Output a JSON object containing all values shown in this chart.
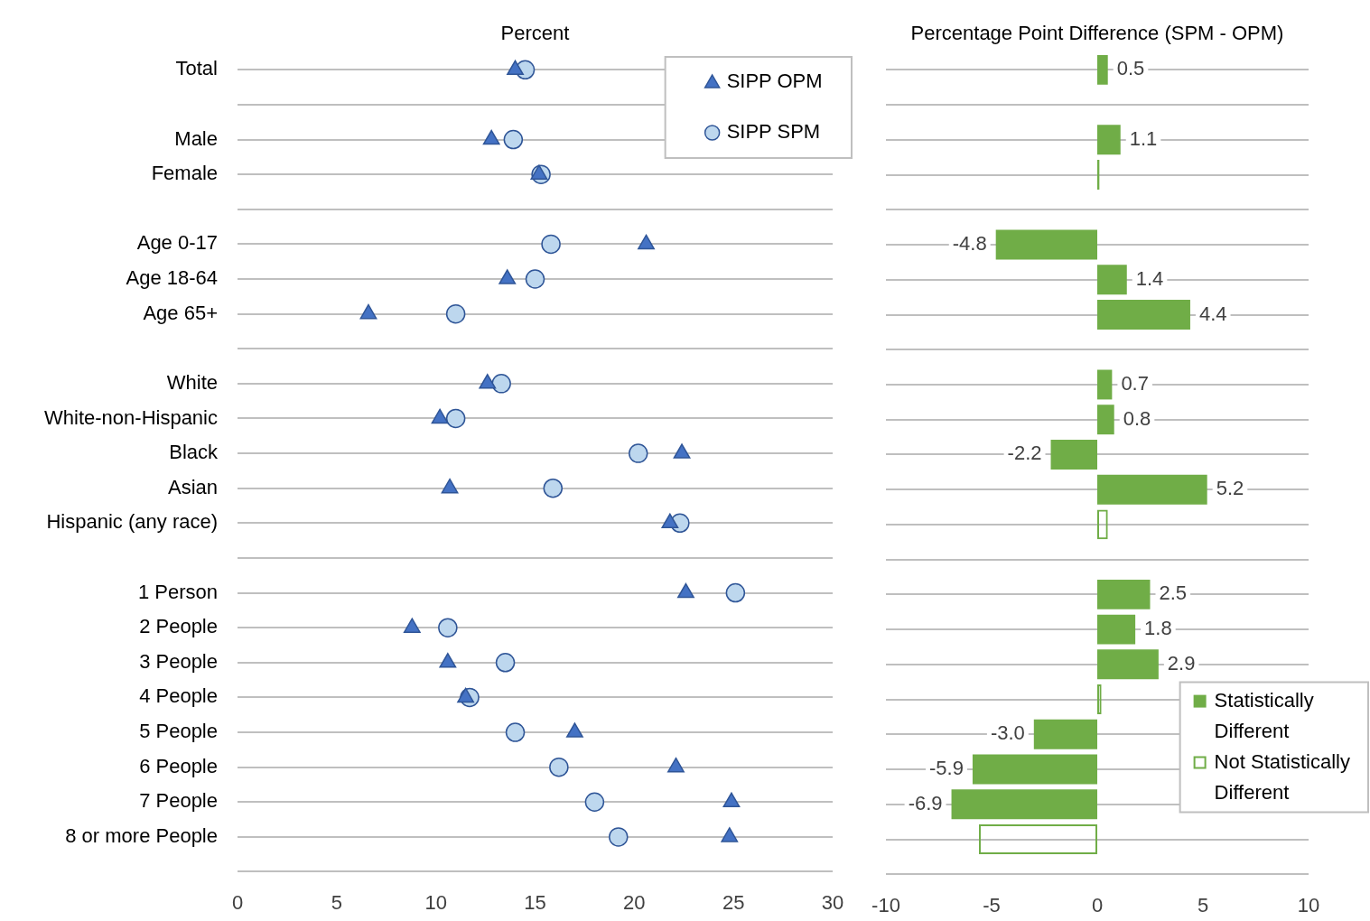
{
  "chart_data": [
    {
      "type": "scatter",
      "orientation": "horizontal",
      "xlabel": "Percent",
      "categories": [
        "Total",
        null,
        "Male",
        "Female",
        null,
        "Age 0-17",
        "Age 18-64",
        "Age 65+",
        null,
        "White",
        "White-non-Hispanic",
        "Black",
        "Asian",
        "Hispanic (any race)",
        null,
        "1 Person",
        "2 People",
        "3 People",
        "4 People",
        "5 People",
        "6 People",
        "7 People",
        "8 or more People",
        null
      ],
      "series": [
        {
          "name": "SIPP OPM",
          "color": "#4472c4",
          "marker": "triangle",
          "values": [
            14.0,
            null,
            12.8,
            15.2,
            null,
            20.6,
            13.6,
            6.6,
            null,
            12.6,
            10.2,
            22.4,
            10.7,
            21.8,
            null,
            22.6,
            8.8,
            10.6,
            11.5,
            17.0,
            22.1,
            24.9,
            24.8,
            null
          ]
        },
        {
          "name": "SIPP SPM",
          "color": "#bdd7ee",
          "marker": "circle",
          "values": [
            14.5,
            null,
            13.9,
            15.3,
            null,
            15.8,
            15.0,
            11.0,
            null,
            13.3,
            11.0,
            20.2,
            15.9,
            22.3,
            null,
            25.1,
            10.6,
            13.5,
            11.7,
            14.0,
            16.2,
            18.0,
            19.2,
            null
          ]
        }
      ],
      "xlim": [
        0,
        30
      ],
      "xticks": [
        0,
        5,
        10,
        15,
        20,
        25,
        30
      ],
      "grid": "y",
      "legend": "top right"
    },
    {
      "type": "bar",
      "orientation": "horizontal",
      "xlabel": "Percentage Point Difference (SPM - OPM)",
      "categories": [
        null,
        null,
        null,
        null,
        null,
        null,
        null,
        null,
        null,
        null,
        null,
        null,
        null,
        null,
        null,
        null,
        null,
        null,
        null,
        null,
        null,
        null,
        null,
        null
      ],
      "series": [
        {
          "name": "Statistically Different",
          "color": "#70ad47",
          "values": [
            0.5,
            null,
            1.1,
            0.1,
            null,
            -4.8,
            1.4,
            4.4,
            null,
            0.7,
            0.8,
            -2.2,
            5.2,
            null,
            null,
            2.5,
            1.8,
            2.9,
            null,
            -3.0,
            -5.9,
            -6.9,
            null,
            null
          ],
          "value_labels": [
            "0.5",
            null,
            "1.1",
            null,
            null,
            "-4.8",
            "1.4",
            "4.4",
            null,
            "0.7",
            "0.8",
            "-2.2",
            "5.2",
            null,
            null,
            "2.5",
            "1.8",
            "2.9",
            null,
            "-3.0",
            "-5.9",
            "-6.9",
            null,
            null
          ]
        },
        {
          "name": "Not Statistically Different",
          "color": "#70ad47",
          "values": [
            null,
            null,
            null,
            null,
            null,
            null,
            null,
            null,
            null,
            null,
            null,
            null,
            null,
            0.5,
            null,
            null,
            null,
            null,
            0.2,
            null,
            null,
            null,
            -5.6,
            null
          ]
        }
      ],
      "xlim": [
        -10,
        10
      ],
      "xticks": [
        -10,
        -5,
        0,
        5,
        10
      ],
      "grid": "y",
      "legend": "bottom right",
      "tick_labels": "x"
    }
  ]
}
